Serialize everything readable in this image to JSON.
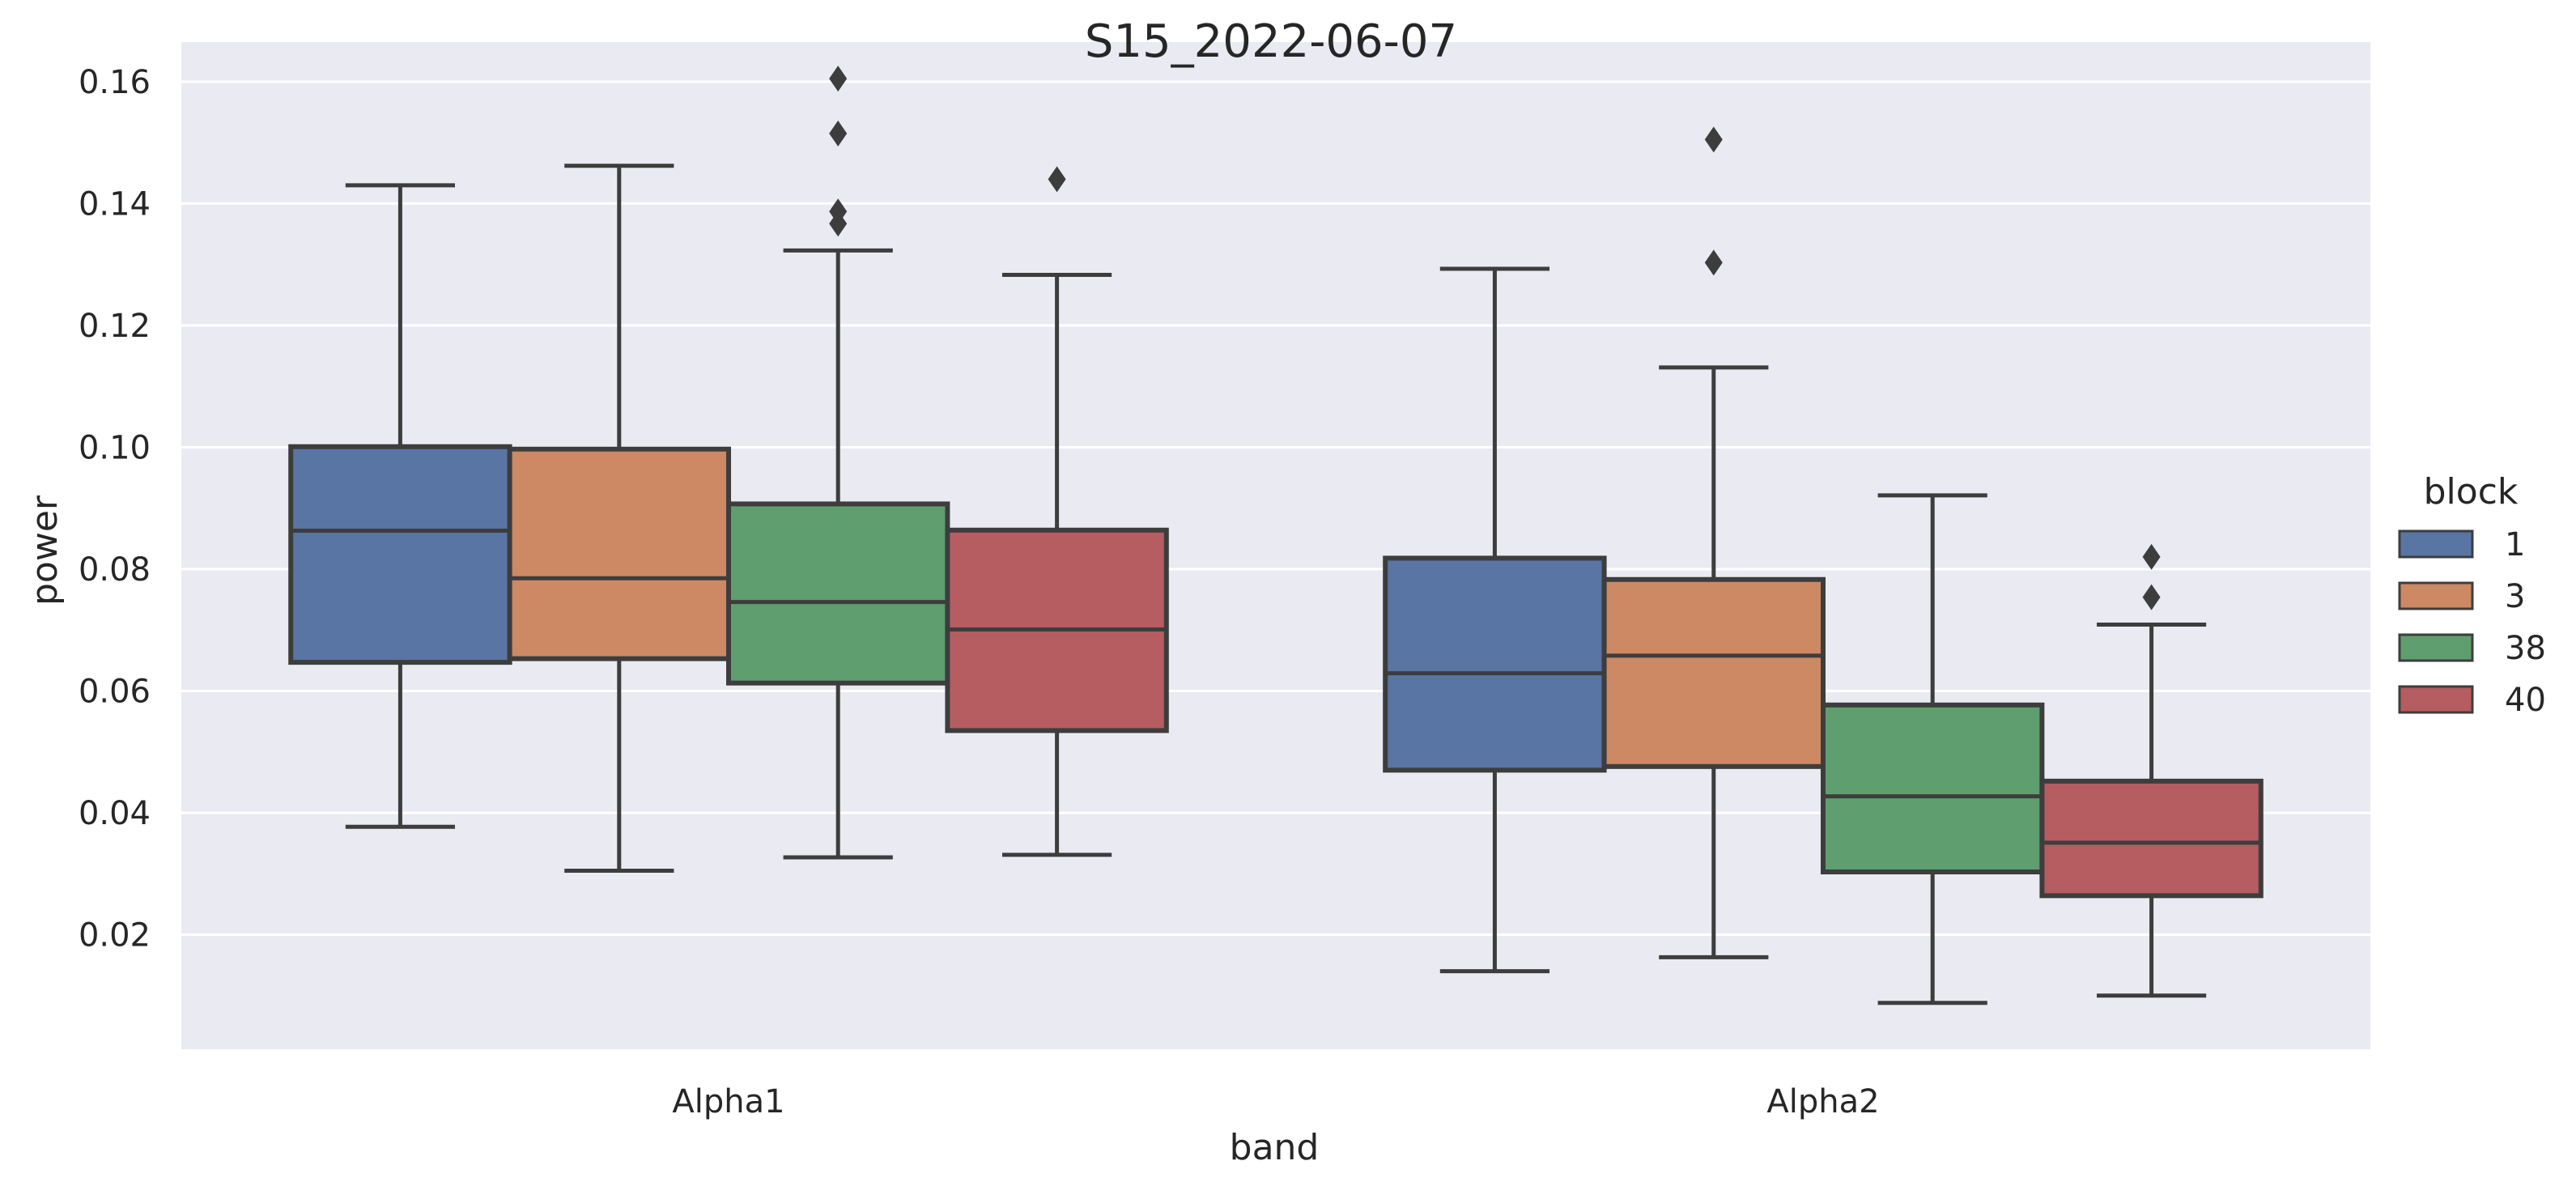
{
  "chart_data": {
    "type": "box",
    "title": "S15_2022-06-07",
    "xlabel": "band",
    "ylabel": "power",
    "ylim": [
      0.0012,
      0.1665
    ],
    "yticks": [
      0.02,
      0.04,
      0.06,
      0.08,
      0.1,
      0.12,
      0.14,
      0.16
    ],
    "ytick_labels": [
      "0.02",
      "0.04",
      "0.06",
      "0.08",
      "0.10",
      "0.12",
      "0.14",
      "0.16"
    ],
    "grid": true,
    "background": "#eaeaf2",
    "categories": [
      "Alpha1",
      "Alpha2"
    ],
    "legend": {
      "title": "block",
      "placement": "right"
    },
    "series": [
      {
        "name": "1",
        "color": "#5875a4",
        "boxes": [
          {
            "whisker_low": 0.0377,
            "q1": 0.0647,
            "median": 0.0863,
            "q3": 0.1001,
            "whisker_high": 0.143,
            "outliers": []
          },
          {
            "whisker_low": 0.014,
            "q1": 0.047,
            "median": 0.0629,
            "q3": 0.0818,
            "whisker_high": 0.1293,
            "outliers": []
          }
        ]
      },
      {
        "name": "3",
        "color": "#cc8963",
        "boxes": [
          {
            "whisker_low": 0.0305,
            "q1": 0.0653,
            "median": 0.0785,
            "q3": 0.0997,
            "whisker_high": 0.1462,
            "outliers": []
          },
          {
            "whisker_low": 0.0163,
            "q1": 0.0476,
            "median": 0.0658,
            "q3": 0.0783,
            "whisker_high": 0.1131,
            "outliers": [
              0.1303,
              0.1505
            ]
          }
        ]
      },
      {
        "name": "38",
        "color": "#5f9e6e",
        "boxes": [
          {
            "whisker_low": 0.0327,
            "q1": 0.0613,
            "median": 0.0746,
            "q3": 0.0907,
            "whisker_high": 0.1323,
            "outliers": [
              0.1367,
              0.1387,
              0.1515,
              0.1605
            ]
          },
          {
            "whisker_low": 0.0088,
            "q1": 0.0303,
            "median": 0.0427,
            "q3": 0.0577,
            "whisker_high": 0.0921,
            "outliers": []
          }
        ]
      },
      {
        "name": "40",
        "color": "#b55d60",
        "boxes": [
          {
            "whisker_low": 0.0331,
            "q1": 0.0535,
            "median": 0.0701,
            "q3": 0.0864,
            "whisker_high": 0.1283,
            "outliers": [
              0.144
            ]
          },
          {
            "whisker_low": 0.01,
            "q1": 0.0264,
            "median": 0.0351,
            "q3": 0.0452,
            "whisker_high": 0.0709,
            "outliers": [
              0.0754,
              0.082
            ]
          }
        ]
      }
    ]
  }
}
